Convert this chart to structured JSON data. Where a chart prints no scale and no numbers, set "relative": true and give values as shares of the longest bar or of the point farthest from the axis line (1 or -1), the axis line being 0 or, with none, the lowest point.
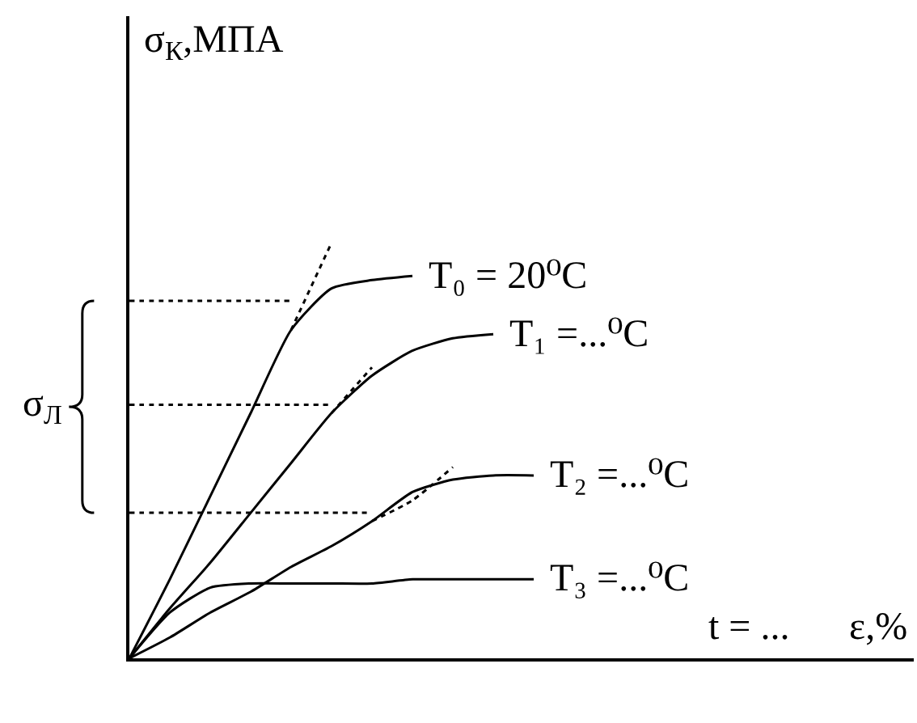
{
  "chart_data": {
    "type": "line",
    "relative": true,
    "ylabel": "σ$_{К}$,МПА",
    "xlabel": "ε,%",
    "legend": false,
    "categories": [
      null,
      null,
      null,
      null,
      null,
      null,
      null,
      null,
      null,
      null,
      null,
      null,
      null,
      null,
      null,
      null,
      null,
      null,
      null,
      null
    ],
    "series": [
      {
        "name": "T₀ = 20⁰C",
        "color": "#000000",
        "line_style": "solid",
        "values": [
          0,
          0.19,
          0.39,
          0.59,
          0.79,
          0.89,
          0.91,
          0.92,
          null,
          null,
          null,
          null,
          null,
          null,
          null,
          null,
          null,
          null,
          null,
          null
        ]
      },
      {
        "name": "T₁ =...⁰C",
        "color": "#000000",
        "line_style": "solid",
        "values": [
          0,
          0.12,
          0.23,
          0.35,
          0.47,
          0.59,
          0.68,
          0.74,
          0.77,
          0.78,
          null,
          null,
          null,
          null,
          null,
          null,
          null,
          null,
          null,
          null
        ]
      },
      {
        "name": "T₂ =...⁰C",
        "color": "#000000",
        "line_style": "solid",
        "values": [
          0,
          0.05,
          0.11,
          0.16,
          0.22,
          0.27,
          0.33,
          0.4,
          0.43,
          0.44,
          0.44,
          null,
          null,
          null,
          null,
          null,
          null,
          null,
          null,
          null
        ]
      },
      {
        "name": "T₃ =...⁰C",
        "color": "#000000",
        "line_style": "solid",
        "values": [
          0,
          0.11,
          0.17,
          0.18,
          0.18,
          0.18,
          0.18,
          0.19,
          0.19,
          0.19,
          0.19,
          null,
          null,
          null,
          null,
          null,
          null,
          null,
          null,
          null
        ]
      },
      {
        "color": "#000000",
        "line_style": "dotted",
        "values": [
          null,
          null,
          null,
          null,
          0.79,
          1.0,
          null,
          null,
          null,
          null,
          null,
          null,
          null,
          null,
          null,
          null,
          null,
          null,
          null,
          null
        ]
      },
      {
        "color": "#000000",
        "line_style": "dotted",
        "values": [
          null,
          null,
          null,
          null,
          null,
          0.59,
          0.7,
          null,
          null,
          null,
          null,
          null,
          null,
          null,
          null,
          null,
          null,
          null,
          null,
          null
        ]
      },
      {
        "color": "#000000",
        "line_style": "dotted",
        "values": [
          null,
          null,
          null,
          null,
          null,
          null,
          0.33,
          0.38,
          0.46,
          null,
          null,
          null,
          null,
          null,
          null,
          null,
          null,
          null,
          null,
          null
        ]
      },
      {
        "color": "#000000",
        "line_style": "dotted",
        "values": [
          0.86,
          0.86,
          0.86,
          0.86,
          0.86,
          null,
          null,
          null,
          null,
          null,
          null,
          null,
          null,
          null,
          null,
          null,
          null,
          null,
          null,
          null
        ]
      },
      {
        "color": "#000000",
        "line_style": "dotted",
        "values": [
          0.61,
          0.61,
          0.61,
          0.61,
          0.61,
          0.61,
          null,
          null,
          null,
          null,
          null,
          null,
          null,
          null,
          null,
          null,
          null,
          null,
          null,
          null
        ]
      },
      {
        "color": "#000000",
        "line_style": "dotted",
        "values": [
          0.35,
          0.35,
          0.35,
          0.35,
          0.35,
          0.35,
          0.35,
          null,
          null,
          null,
          null,
          null,
          null,
          null,
          null,
          null,
          null,
          null,
          null,
          null
        ]
      }
    ],
    "annotations": [
      "σ$_{Л}$",
      "t = ..."
    ]
  }
}
